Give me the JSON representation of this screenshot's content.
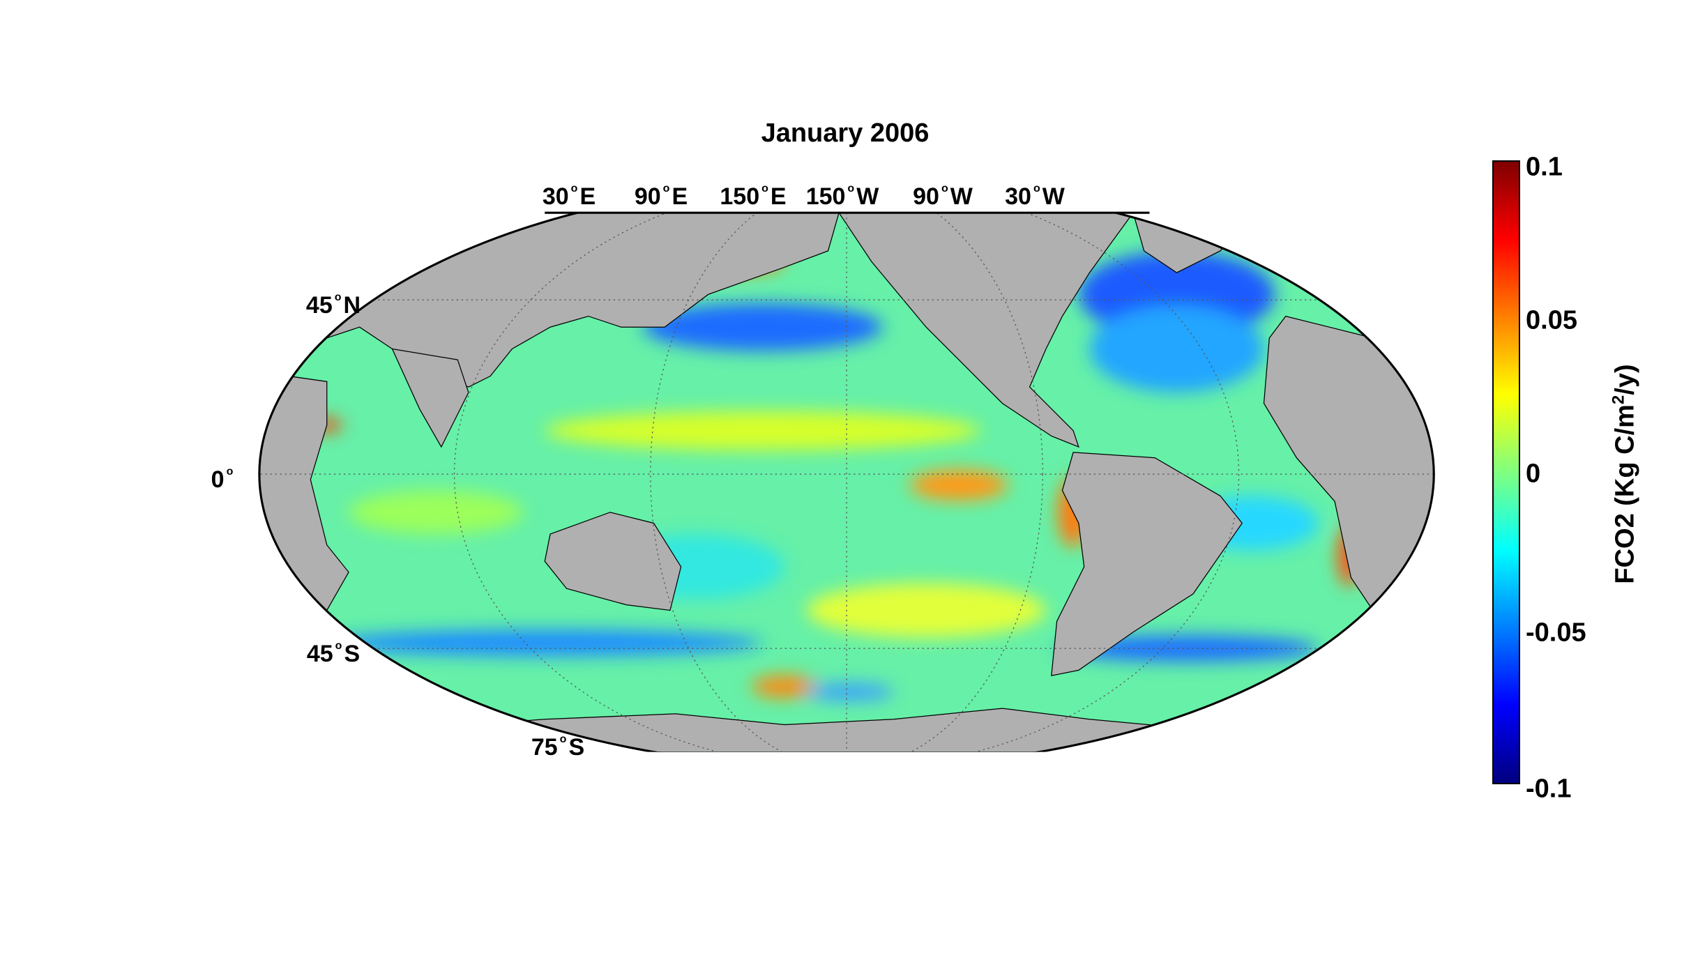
{
  "title": "January 2006",
  "map": {
    "projection": "Mollweide",
    "central_meridian": "180",
    "lon_labels": [
      {
        "value": "30",
        "hemi": "E"
      },
      {
        "value": "90",
        "hemi": "E"
      },
      {
        "value": "150",
        "hemi": "E"
      },
      {
        "value": "150",
        "hemi": "W"
      },
      {
        "value": "90",
        "hemi": "W"
      },
      {
        "value": "30",
        "hemi": "W"
      }
    ],
    "lat_labels": [
      {
        "value": "45",
        "hemi": "N"
      },
      {
        "value": "0",
        "hemi": ""
      },
      {
        "value": "45",
        "hemi": "S"
      },
      {
        "value": "75",
        "hemi": "S"
      }
    ],
    "land_color": "#b0b0b0",
    "missing_color": "#ffffff",
    "grid": "dotted"
  },
  "colorbar": {
    "colormap": "jet",
    "min": -0.1,
    "max": 0.1,
    "ticks": [
      "0.1",
      "0.05",
      "0",
      "-0.05",
      "-0.1"
    ],
    "label_main": "FCO2 (Kg C/m",
    "label_sup": "2",
    "label_end": "/y)"
  }
}
